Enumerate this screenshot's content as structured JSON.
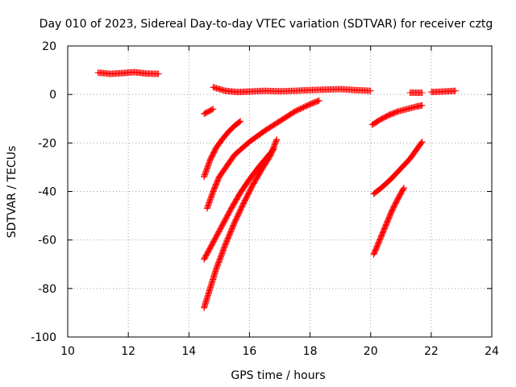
{
  "chart_data": {
    "type": "scatter",
    "title": "Day 010 of 2023, Sidereal Day-to-day VTEC variation (SDTVAR) for receiver cztg",
    "xlabel": "GPS time / hours",
    "ylabel": "SDTVAR / TECUs",
    "xlim": [
      10,
      24
    ],
    "ylim": [
      -100,
      20
    ],
    "xticks": [
      "10",
      "12",
      "14",
      "16",
      "18",
      "20",
      "22",
      "24"
    ],
    "yticks": [
      "-100",
      "-80",
      "-60",
      "-40",
      "-20",
      "0",
      "20"
    ],
    "grid": true,
    "marker": "+",
    "color": "#ff0000",
    "series": [
      {
        "x": [
          11.0,
          11.4,
          11.8,
          12.2,
          12.6,
          13.0
        ],
        "y": [
          9.0,
          8.5,
          8.8,
          9.2,
          8.6,
          8.5
        ]
      },
      {
        "x": [
          14.8,
          15.2,
          15.6,
          16.0,
          16.5,
          17.0,
          17.5,
          18.0,
          18.5,
          19.0,
          19.5,
          20.0
        ],
        "y": [
          3.0,
          1.5,
          1.0,
          1.2,
          1.5,
          1.3,
          1.5,
          1.8,
          2.0,
          2.2,
          1.8,
          1.5
        ]
      },
      {
        "x": [
          14.5,
          14.8
        ],
        "y": [
          -8.0,
          -6.0
        ]
      },
      {
        "x": [
          14.5,
          14.7,
          14.9,
          15.1,
          15.3,
          15.5,
          15.7
        ],
        "y": [
          -34.0,
          -27.0,
          -22.0,
          -18.5,
          -15.5,
          -13.0,
          -11.0
        ]
      },
      {
        "x": [
          14.6,
          14.8,
          15.0,
          15.5,
          16.0,
          16.5,
          17.0,
          17.5,
          18.0,
          18.3
        ],
        "y": [
          -47.0,
          -40.0,
          -34.0,
          -25.0,
          -19.5,
          -15.0,
          -11.0,
          -7.0,
          -4.0,
          -2.5
        ]
      },
      {
        "x": [
          14.5,
          14.8,
          15.1,
          15.4,
          15.7,
          16.0,
          16.3,
          16.6,
          16.8
        ],
        "y": [
          -68.0,
          -61.0,
          -54.0,
          -47.0,
          -40.5,
          -35.0,
          -30.0,
          -25.5,
          -22.5
        ]
      },
      {
        "x": [
          14.5,
          14.7,
          14.9,
          15.2,
          15.5,
          15.8,
          16.1,
          16.4,
          16.7,
          16.9
        ],
        "y": [
          -88.0,
          -80.0,
          -72.0,
          -62.0,
          -53.0,
          -45.0,
          -37.5,
          -31.0,
          -25.0,
          -18.5
        ]
      },
      {
        "x": [
          20.05,
          20.3,
          20.6,
          20.9,
          21.2,
          21.5,
          21.7
        ],
        "y": [
          -12.5,
          -10.5,
          -8.5,
          -7.0,
          -6.0,
          -5.0,
          -4.5
        ]
      },
      {
        "x": [
          20.1,
          20.4,
          20.7,
          21.0,
          21.3,
          21.5,
          21.7
        ],
        "y": [
          -41.0,
          -38.0,
          -34.5,
          -30.5,
          -26.5,
          -23.0,
          -19.5
        ]
      },
      {
        "x": [
          20.1,
          20.3,
          20.5,
          20.7,
          20.9,
          21.1
        ],
        "y": [
          -66.0,
          -60.0,
          -54.0,
          -48.0,
          -43.0,
          -38.5
        ]
      },
      {
        "x": [
          21.3,
          21.7
        ],
        "y": [
          0.7,
          0.7
        ]
      },
      {
        "x": [
          22.0,
          22.4,
          22.8
        ],
        "y": [
          1.0,
          1.2,
          1.5
        ]
      }
    ]
  }
}
